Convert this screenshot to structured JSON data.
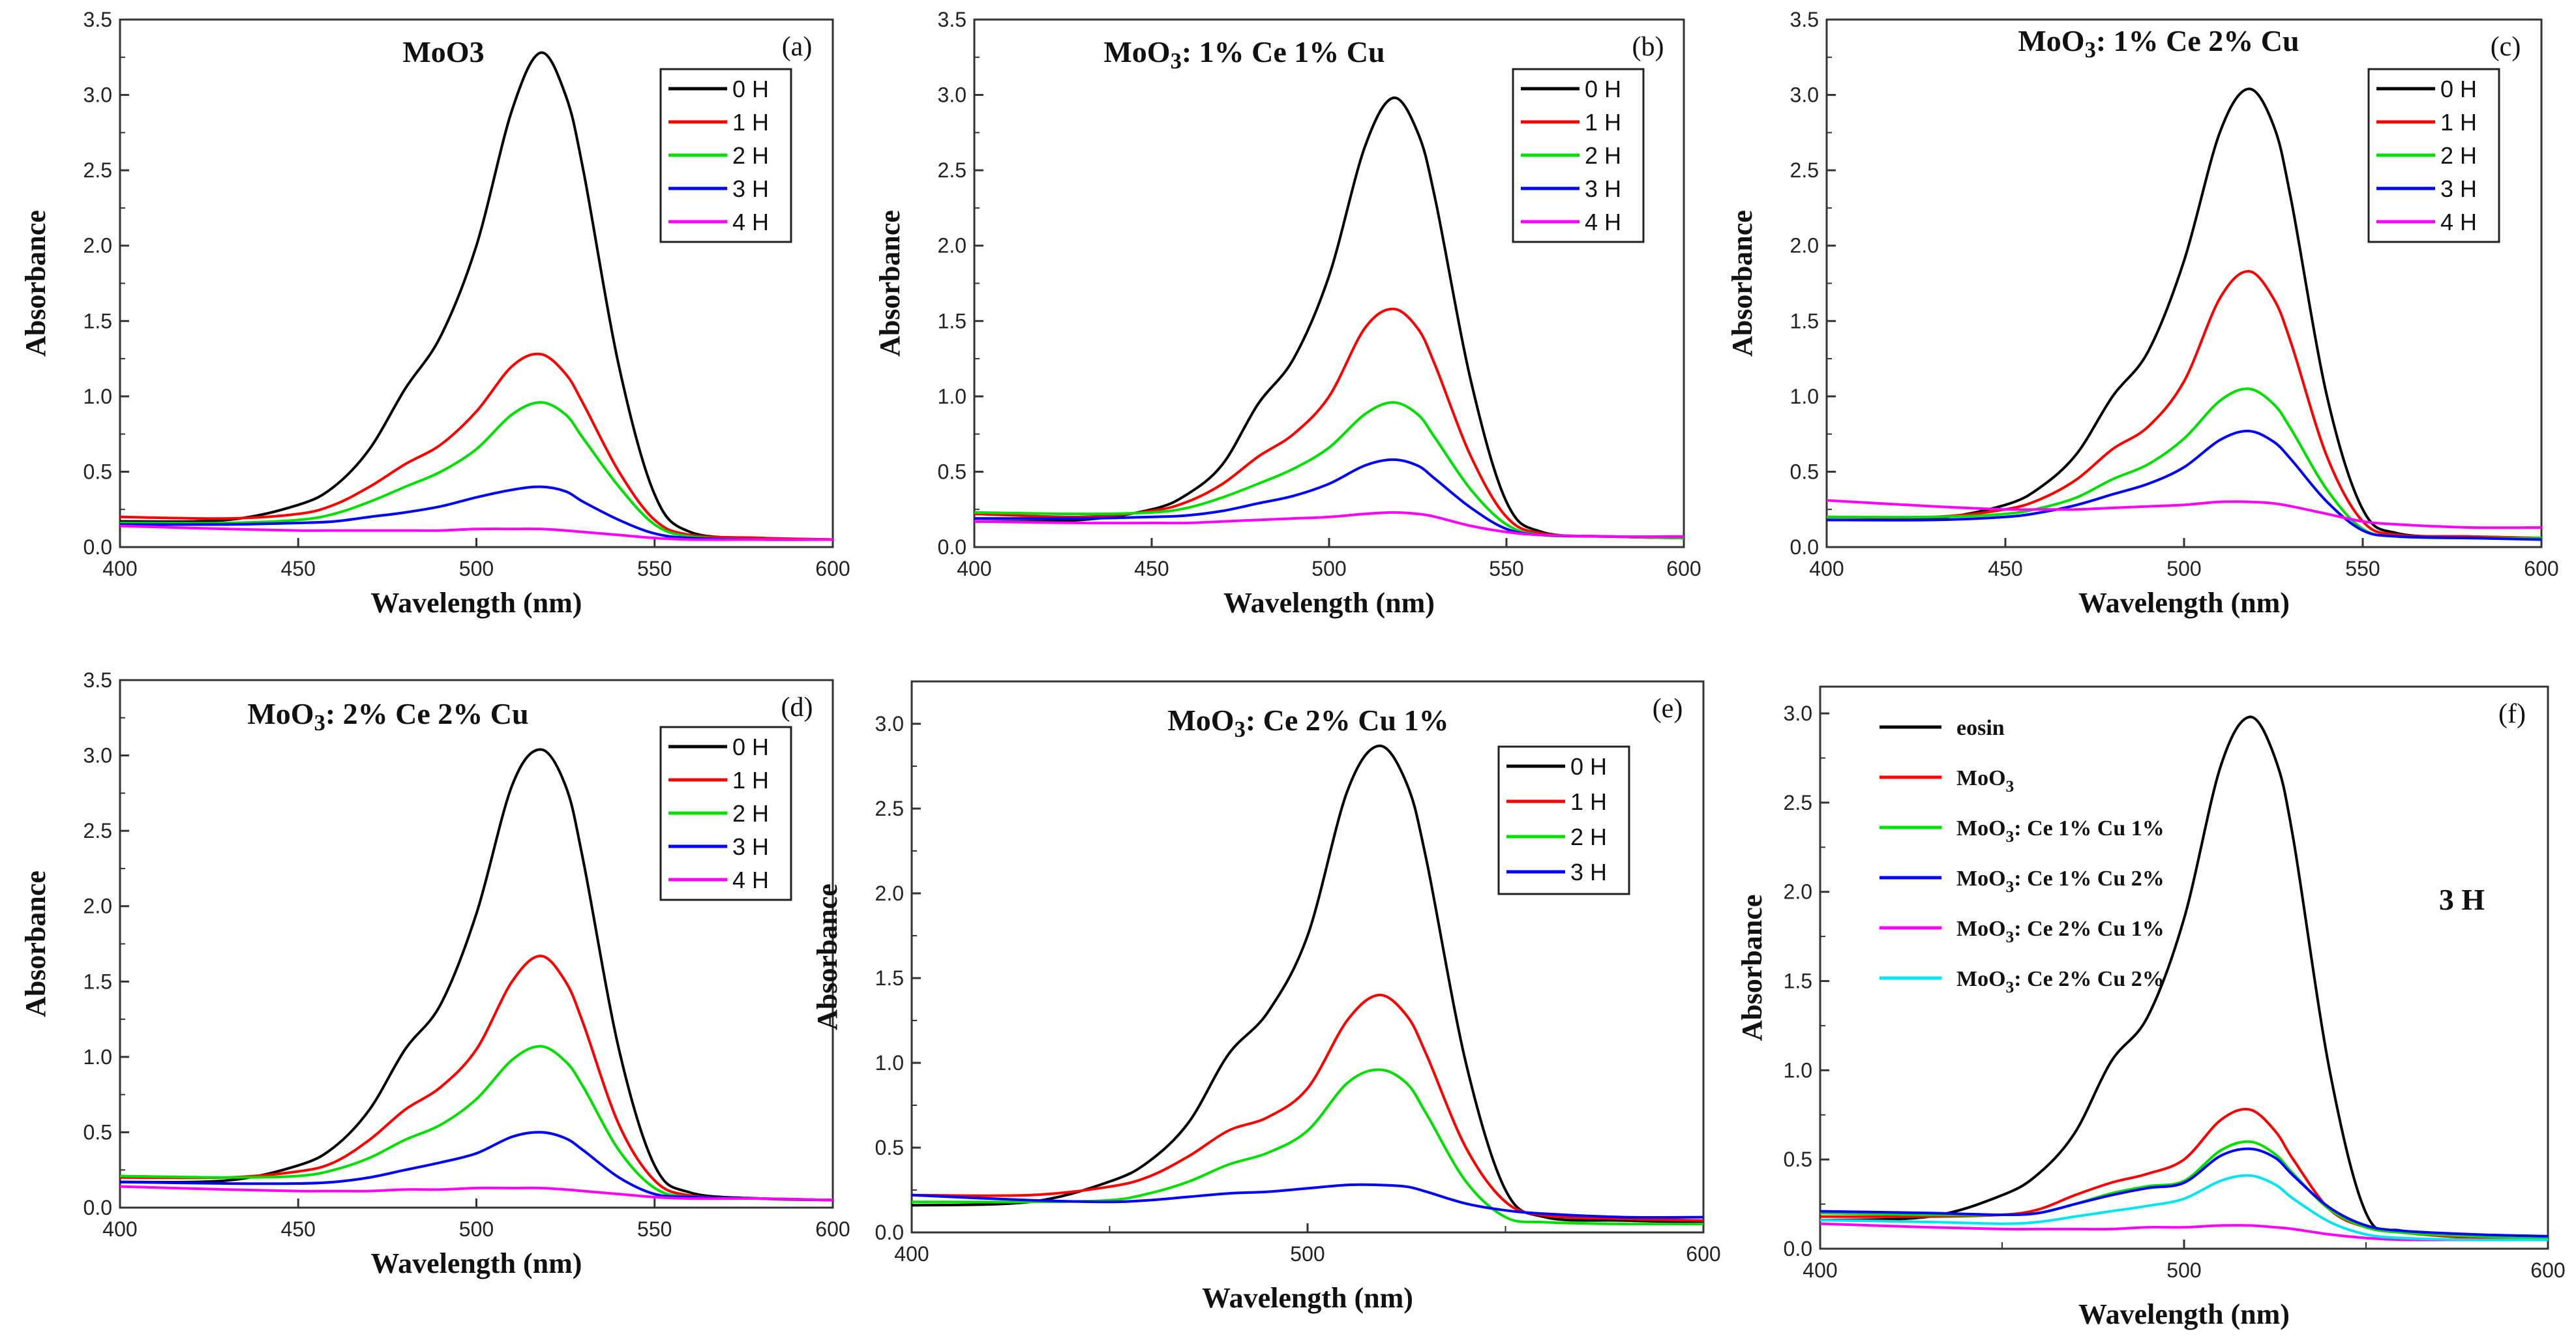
{
  "chart_data": [
    {
      "type": "line",
      "panel_label": "(a)",
      "title": {
        "base": "MoO3",
        "sub": "",
        "rest": ""
      },
      "xlabel": "Wavelength (nm)",
      "ylabel": "Absorbance",
      "xlim": [
        400,
        600
      ],
      "ylim": [
        0,
        3.5
      ],
      "xticks": [
        400,
        450,
        500,
        550,
        600
      ],
      "yticks": [
        "0.0",
        "0.5",
        "1.0",
        "1.5",
        "2.0",
        "2.5",
        "3.0",
        "3.5"
      ],
      "x": [
        400,
        430,
        450,
        460,
        470,
        480,
        490,
        500,
        510,
        518,
        525,
        530,
        540,
        550,
        560,
        580,
        600
      ],
      "series": [
        {
          "name": "0 H",
          "color": "#000000",
          "values": [
            0.17,
            0.18,
            0.28,
            0.4,
            0.65,
            1.05,
            1.4,
            2.0,
            2.9,
            3.28,
            3.0,
            2.5,
            1.2,
            0.35,
            0.1,
            0.06,
            0.05
          ]
        },
        {
          "name": "1 H",
          "color": "#ff0000",
          "values": [
            0.2,
            0.19,
            0.22,
            0.28,
            0.4,
            0.55,
            0.68,
            0.9,
            1.2,
            1.28,
            1.15,
            0.95,
            0.5,
            0.18,
            0.08,
            0.06,
            0.05
          ]
        },
        {
          "name": "2 H",
          "color": "#00e000",
          "values": [
            0.16,
            0.16,
            0.18,
            0.22,
            0.3,
            0.4,
            0.5,
            0.65,
            0.88,
            0.96,
            0.88,
            0.72,
            0.4,
            0.15,
            0.07,
            0.05,
            0.05
          ]
        },
        {
          "name": "3 H",
          "color": "#0000ff",
          "values": [
            0.15,
            0.15,
            0.16,
            0.17,
            0.2,
            0.23,
            0.27,
            0.33,
            0.38,
            0.4,
            0.37,
            0.3,
            0.18,
            0.09,
            0.06,
            0.05,
            0.05
          ]
        },
        {
          "name": "4 H",
          "color": "#ff00ff",
          "values": [
            0.14,
            0.12,
            0.11,
            0.11,
            0.11,
            0.11,
            0.11,
            0.12,
            0.12,
            0.12,
            0.11,
            0.1,
            0.08,
            0.06,
            0.05,
            0.05,
            0.05
          ]
        }
      ]
    },
    {
      "type": "line",
      "panel_label": "(b)",
      "title": {
        "base": "MoO",
        "sub": "3",
        "rest": ": 1% Ce 1% Cu"
      },
      "xlabel": "Wavelength (nm)",
      "ylabel": "Absorbance",
      "xlim": [
        400,
        600
      ],
      "ylim": [
        0,
        3.5
      ],
      "xticks": [
        400,
        450,
        500,
        550,
        600
      ],
      "yticks": [
        "0.0",
        "0.5",
        "1.0",
        "1.5",
        "2.0",
        "2.5",
        "3.0",
        "3.5"
      ],
      "x": [
        400,
        430,
        450,
        460,
        470,
        480,
        490,
        500,
        510,
        518,
        525,
        530,
        540,
        550,
        560,
        580,
        600
      ],
      "series": [
        {
          "name": "0 H",
          "color": "#000000",
          "values": [
            0.17,
            0.18,
            0.25,
            0.35,
            0.55,
            0.95,
            1.25,
            1.8,
            2.65,
            2.98,
            2.75,
            2.3,
            1.1,
            0.3,
            0.1,
            0.07,
            0.06
          ]
        },
        {
          "name": "1 H",
          "color": "#ff0000",
          "values": [
            0.22,
            0.2,
            0.24,
            0.3,
            0.42,
            0.6,
            0.75,
            1.0,
            1.45,
            1.58,
            1.45,
            1.2,
            0.6,
            0.2,
            0.09,
            0.07,
            0.06
          ]
        },
        {
          "name": "2 H",
          "color": "#00e000",
          "values": [
            0.23,
            0.22,
            0.23,
            0.26,
            0.33,
            0.42,
            0.52,
            0.66,
            0.88,
            0.96,
            0.88,
            0.72,
            0.38,
            0.15,
            0.08,
            0.07,
            0.06
          ]
        },
        {
          "name": "3 H",
          "color": "#0000ff",
          "values": [
            0.19,
            0.19,
            0.2,
            0.21,
            0.24,
            0.29,
            0.34,
            0.42,
            0.54,
            0.58,
            0.54,
            0.45,
            0.26,
            0.12,
            0.08,
            0.07,
            0.07
          ]
        },
        {
          "name": "4 H",
          "color": "#ff00ff",
          "values": [
            0.17,
            0.16,
            0.16,
            0.16,
            0.17,
            0.18,
            0.19,
            0.2,
            0.22,
            0.23,
            0.22,
            0.2,
            0.14,
            0.1,
            0.08,
            0.07,
            0.07
          ]
        }
      ]
    },
    {
      "type": "line",
      "panel_label": "(c)",
      "title": {
        "base": "MoO",
        "sub": "3",
        "rest": ": 1% Ce 2% Cu"
      },
      "xlabel": "Wavelength (nm)",
      "ylabel": "Absorbance",
      "xlim": [
        400,
        600
      ],
      "ylim": [
        0,
        3.5
      ],
      "xticks": [
        400,
        450,
        500,
        550,
        600
      ],
      "yticks": [
        "0.0",
        "0.5",
        "1.0",
        "1.5",
        "2.0",
        "2.5",
        "3.0",
        "3.5"
      ],
      "x": [
        400,
        430,
        450,
        460,
        470,
        480,
        490,
        500,
        510,
        518,
        525,
        530,
        540,
        550,
        560,
        580,
        600
      ],
      "series": [
        {
          "name": "0 H",
          "color": "#000000",
          "values": [
            0.18,
            0.19,
            0.28,
            0.4,
            0.62,
            1.0,
            1.3,
            1.9,
            2.75,
            3.04,
            2.8,
            2.3,
            1.0,
            0.25,
            0.09,
            0.07,
            0.06
          ]
        },
        {
          "name": "1 H",
          "color": "#ff0000",
          "values": [
            0.2,
            0.2,
            0.25,
            0.32,
            0.45,
            0.65,
            0.8,
            1.1,
            1.65,
            1.83,
            1.65,
            1.35,
            0.6,
            0.17,
            0.08,
            0.07,
            0.06
          ]
        },
        {
          "name": "2 H",
          "color": "#00e000",
          "values": [
            0.2,
            0.2,
            0.22,
            0.26,
            0.33,
            0.45,
            0.55,
            0.72,
            0.97,
            1.05,
            0.95,
            0.78,
            0.38,
            0.12,
            0.07,
            0.06,
            0.06
          ]
        },
        {
          "name": "3 H",
          "color": "#0000ff",
          "values": [
            0.18,
            0.18,
            0.2,
            0.23,
            0.28,
            0.35,
            0.42,
            0.53,
            0.71,
            0.77,
            0.7,
            0.58,
            0.3,
            0.11,
            0.07,
            0.06,
            0.05
          ]
        },
        {
          "name": "4 H",
          "color": "#ff00ff",
          "values": [
            0.31,
            0.27,
            0.25,
            0.25,
            0.25,
            0.26,
            0.27,
            0.28,
            0.3,
            0.3,
            0.29,
            0.27,
            0.22,
            0.17,
            0.15,
            0.13,
            0.13
          ]
        }
      ]
    },
    {
      "type": "line",
      "panel_label": "(d)",
      "title": {
        "base": "MoO",
        "sub": "3",
        "rest": ": 2% Ce 2% Cu"
      },
      "xlabel": "Wavelength (nm)",
      "ylabel": "Absorbance",
      "xlim": [
        400,
        600
      ],
      "ylim": [
        0,
        3.5
      ],
      "xticks": [
        400,
        450,
        500,
        550,
        600
      ],
      "yticks": [
        "0.0",
        "0.5",
        "1.0",
        "1.5",
        "2.0",
        "2.5",
        "3.0",
        "3.5"
      ],
      "x": [
        400,
        430,
        450,
        460,
        470,
        480,
        490,
        500,
        510,
        518,
        525,
        530,
        540,
        550,
        560,
        580,
        600
      ],
      "series": [
        {
          "name": "0 H",
          "color": "#000000",
          "values": [
            0.17,
            0.18,
            0.28,
            0.4,
            0.65,
            1.05,
            1.35,
            1.95,
            2.8,
            3.04,
            2.8,
            2.3,
            1.05,
            0.28,
            0.1,
            0.06,
            0.05
          ]
        },
        {
          "name": "1 H",
          "color": "#ff0000",
          "values": [
            0.2,
            0.2,
            0.24,
            0.3,
            0.45,
            0.65,
            0.8,
            1.05,
            1.5,
            1.67,
            1.5,
            1.22,
            0.55,
            0.18,
            0.08,
            0.06,
            0.05
          ]
        },
        {
          "name": "2 H",
          "color": "#00e000",
          "values": [
            0.21,
            0.2,
            0.21,
            0.25,
            0.33,
            0.45,
            0.55,
            0.72,
            0.98,
            1.07,
            0.97,
            0.8,
            0.38,
            0.13,
            0.07,
            0.06,
            0.05
          ]
        },
        {
          "name": "3 H",
          "color": "#0000ff",
          "values": [
            0.17,
            0.16,
            0.16,
            0.17,
            0.2,
            0.25,
            0.3,
            0.36,
            0.47,
            0.5,
            0.46,
            0.38,
            0.2,
            0.09,
            0.07,
            0.06,
            0.05
          ]
        },
        {
          "name": "4 H",
          "color": "#ff00ff",
          "values": [
            0.14,
            0.12,
            0.11,
            0.11,
            0.11,
            0.12,
            0.12,
            0.13,
            0.13,
            0.13,
            0.12,
            0.11,
            0.09,
            0.07,
            0.06,
            0.06,
            0.05
          ]
        }
      ]
    },
    {
      "type": "line",
      "panel_label": "(e)",
      "title": {
        "base": "MoO",
        "sub": "3",
        "rest": ": Ce 2% Cu 1%"
      },
      "xlabel": "Wavelength (nm)",
      "ylabel": "Absorbance",
      "xlim": [
        400,
        600
      ],
      "ylim": [
        0,
        3.25
      ],
      "xticks": [
        400,
        500,
        600
      ],
      "yticks": [
        "0.0",
        "0.5",
        "1.0",
        "1.5",
        "2.0",
        "2.5",
        "3.0"
      ],
      "x": [
        400,
        430,
        450,
        460,
        470,
        480,
        490,
        500,
        510,
        518,
        525,
        530,
        540,
        550,
        560,
        580,
        600
      ],
      "series": [
        {
          "name": "0 H",
          "color": "#000000",
          "values": [
            0.16,
            0.18,
            0.3,
            0.42,
            0.65,
            1.05,
            1.3,
            1.75,
            2.6,
            2.87,
            2.65,
            2.2,
            1.0,
            0.25,
            0.09,
            0.07,
            0.06
          ]
        },
        {
          "name": "1 H",
          "color": "#ff0000",
          "values": [
            0.22,
            0.22,
            0.27,
            0.33,
            0.45,
            0.6,
            0.68,
            0.85,
            1.25,
            1.4,
            1.28,
            1.05,
            0.5,
            0.18,
            0.1,
            0.08,
            0.07
          ]
        },
        {
          "name": "2 H",
          "color": "#00e000",
          "values": [
            0.18,
            0.18,
            0.19,
            0.23,
            0.3,
            0.4,
            0.47,
            0.6,
            0.88,
            0.96,
            0.88,
            0.7,
            0.3,
            0.09,
            0.06,
            0.05,
            0.05
          ]
        },
        {
          "name": "3 H",
          "color": "#0000ff",
          "values": [
            0.22,
            0.19,
            0.18,
            0.19,
            0.21,
            0.23,
            0.24,
            0.26,
            0.28,
            0.28,
            0.27,
            0.24,
            0.17,
            0.13,
            0.11,
            0.09,
            0.09
          ]
        }
      ]
    },
    {
      "type": "line",
      "panel_label": "(f)",
      "annotation": "3 H",
      "title": {
        "base": "",
        "sub": "",
        "rest": ""
      },
      "xlabel": "Wavelength (nm)",
      "ylabel": "Absorbance",
      "xlim": [
        400,
        600
      ],
      "ylim": [
        0,
        3.15
      ],
      "xticks": [
        400,
        500,
        600
      ],
      "yticks": [
        "0.0",
        "0.5",
        "1.0",
        "1.5",
        "2.0",
        "2.5",
        "3.0"
      ],
      "x": [
        400,
        430,
        450,
        460,
        470,
        480,
        490,
        500,
        510,
        518,
        525,
        530,
        540,
        550,
        560,
        580,
        600
      ],
      "series": [
        {
          "name": "eosin",
          "label": {
            "base": "eosin",
            "sub": "",
            "rest": ""
          },
          "color": "#000000",
          "values": [
            0.16,
            0.18,
            0.3,
            0.42,
            0.65,
            1.05,
            1.3,
            1.85,
            2.7,
            2.98,
            2.75,
            2.3,
            1.0,
            0.2,
            0.1,
            0.06,
            0.05
          ]
        },
        {
          "name": "MoO3",
          "label": {
            "base": "MoO",
            "sub": "3",
            "rest": ""
          },
          "color": "#ff0000",
          "values": [
            0.18,
            0.18,
            0.19,
            0.22,
            0.3,
            0.37,
            0.42,
            0.5,
            0.72,
            0.78,
            0.66,
            0.5,
            0.22,
            0.12,
            0.09,
            0.06,
            0.05
          ]
        },
        {
          "name": "MoO3: Ce 1% Cu 1%",
          "label": {
            "base": "MoO",
            "sub": "3",
            "rest": ": Ce 1% Cu 1%"
          },
          "color": "#00e000",
          "values": [
            0.2,
            0.19,
            0.19,
            0.2,
            0.25,
            0.31,
            0.35,
            0.38,
            0.55,
            0.6,
            0.53,
            0.42,
            0.22,
            0.12,
            0.09,
            0.07,
            0.06
          ]
        },
        {
          "name": "MoO3: Ce 1% Cu 2%",
          "label": {
            "base": "MoO",
            "sub": "3",
            "rest": ": Ce 1% Cu 2%"
          },
          "color": "#0000ff",
          "values": [
            0.21,
            0.2,
            0.19,
            0.2,
            0.25,
            0.3,
            0.34,
            0.37,
            0.52,
            0.56,
            0.51,
            0.41,
            0.23,
            0.13,
            0.1,
            0.08,
            0.07
          ]
        },
        {
          "name": "MoO3: Ce 2% Cu 1%",
          "label": {
            "base": "MoO",
            "sub": "3",
            "rest": ": Ce 2% Cu 1%"
          },
          "color": "#ff00ff",
          "values": [
            0.14,
            0.12,
            0.11,
            0.11,
            0.11,
            0.11,
            0.12,
            0.12,
            0.13,
            0.13,
            0.12,
            0.11,
            0.08,
            0.06,
            0.05,
            0.05,
            0.05
          ]
        },
        {
          "name": "MoO3: Ce 2% Cu 2%",
          "label": {
            "base": "MoO",
            "sub": "3",
            "rest": ": Ce 2% Cu 2%"
          },
          "color": "#00e5ee",
          "values": [
            0.16,
            0.15,
            0.14,
            0.15,
            0.18,
            0.21,
            0.24,
            0.28,
            0.38,
            0.41,
            0.36,
            0.28,
            0.15,
            0.08,
            0.06,
            0.05,
            0.05
          ]
        }
      ]
    }
  ]
}
